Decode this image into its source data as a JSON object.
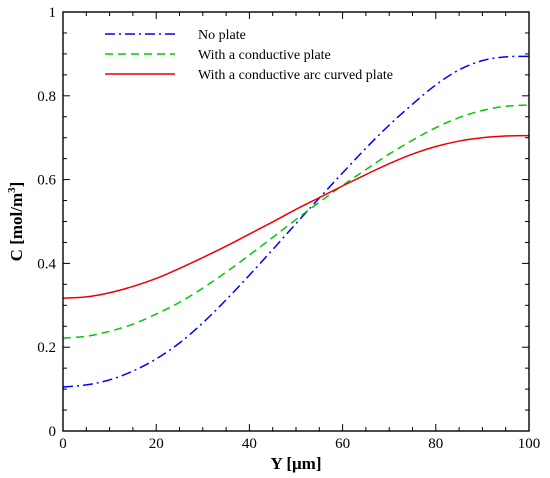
{
  "chart_data": {
    "type": "line",
    "title": "",
    "xlabel": "Y [μm]",
    "ylabel_main": "C [mol/m",
    "ylabel_sup": "3",
    "ylabel_close": "]",
    "xlim": [
      0,
      100
    ],
    "ylim": [
      0,
      1
    ],
    "xticks": [
      0,
      20,
      40,
      60,
      80,
      100
    ],
    "yticks": [
      0,
      0.2,
      0.4,
      0.6,
      0.8,
      1
    ],
    "ytick_labels": [
      "0",
      "0.2",
      "0.4",
      "0.6",
      "0.8",
      "1"
    ],
    "grid": false,
    "legend_position": "top-left",
    "x": [
      0,
      5,
      10,
      15,
      20,
      25,
      30,
      35,
      40,
      45,
      50,
      55,
      60,
      65,
      70,
      75,
      80,
      85,
      90,
      95,
      100
    ],
    "series": [
      {
        "name": "No plate",
        "color": "#0000ff",
        "dash": "dash-dot",
        "values": [
          0.105,
          0.11,
          0.122,
          0.143,
          0.172,
          0.21,
          0.258,
          0.313,
          0.372,
          0.433,
          0.495,
          0.556,
          0.616,
          0.675,
          0.73,
          0.78,
          0.826,
          0.862,
          0.884,
          0.893,
          0.894
        ]
      },
      {
        "name": "With a conductive plate",
        "color": "#00cc00",
        "dash": "dash",
        "values": [
          0.222,
          0.226,
          0.238,
          0.255,
          0.279,
          0.307,
          0.341,
          0.379,
          0.42,
          0.462,
          0.505,
          0.546,
          0.586,
          0.624,
          0.661,
          0.694,
          0.724,
          0.748,
          0.765,
          0.775,
          0.778
        ]
      },
      {
        "name": "With a conductive arc curved plate",
        "color": "#ee0000",
        "dash": "solid",
        "values": [
          0.317,
          0.32,
          0.33,
          0.345,
          0.364,
          0.388,
          0.414,
          0.441,
          0.47,
          0.499,
          0.529,
          0.557,
          0.585,
          0.612,
          0.638,
          0.661,
          0.679,
          0.692,
          0.7,
          0.704,
          0.705
        ]
      }
    ]
  }
}
